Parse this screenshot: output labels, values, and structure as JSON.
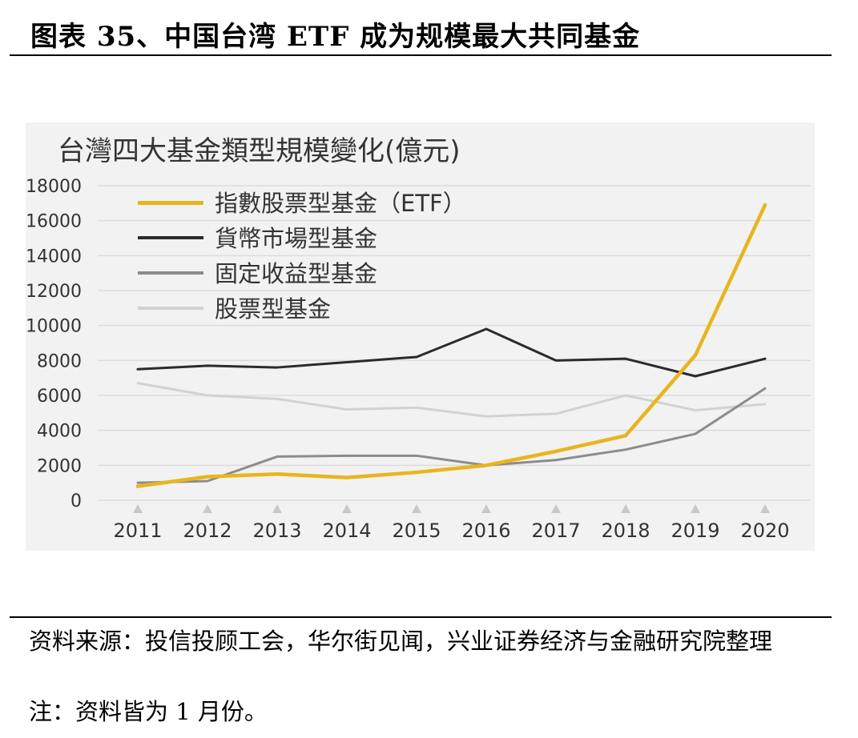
{
  "figure_title": "图表 35、中国台湾 ETF 成为规模最大共同基金",
  "source_text": "资料来源：投信投顾工会，华尔街见闻，兴业证券经济与金融研究院整理",
  "note_text": "注：资料皆为 1 月份。",
  "chart_data": {
    "type": "line",
    "title": "台灣四大基金類型規模變化(億元)",
    "xlabel": "",
    "ylabel": "",
    "x": [
      "2011",
      "2012",
      "2013",
      "2014",
      "2015",
      "2016",
      "2017",
      "2018",
      "2019",
      "2020"
    ],
    "ylim": [
      0,
      18000
    ],
    "yticks": [
      "0",
      "2000",
      "4000",
      "6000",
      "8000",
      "10000",
      "12000",
      "14000",
      "16000",
      "18000"
    ],
    "grid": true,
    "legend_position": "top-left",
    "series": [
      {
        "name": "指數股票型基金（ETF）",
        "color": "#e8b51e",
        "values": [
          800,
          1350,
          1500,
          1300,
          1600,
          2000,
          2800,
          3700,
          8300,
          16900
        ]
      },
      {
        "name": "貨幣市場型基金",
        "color": "#2b2b2b",
        "values": [
          7500,
          7700,
          7600,
          7900,
          8200,
          9800,
          8000,
          8100,
          7100,
          8100
        ]
      },
      {
        "name": "固定收益型基金",
        "color": "#8c8c8c",
        "values": [
          1000,
          1100,
          2500,
          2550,
          2550,
          2000,
          2300,
          2900,
          3800,
          6400
        ]
      },
      {
        "name": "股票型基金",
        "color": "#d2d2d2",
        "values": [
          6700,
          6000,
          5800,
          5200,
          5300,
          4800,
          4950,
          6000,
          5150,
          5500
        ]
      }
    ]
  }
}
